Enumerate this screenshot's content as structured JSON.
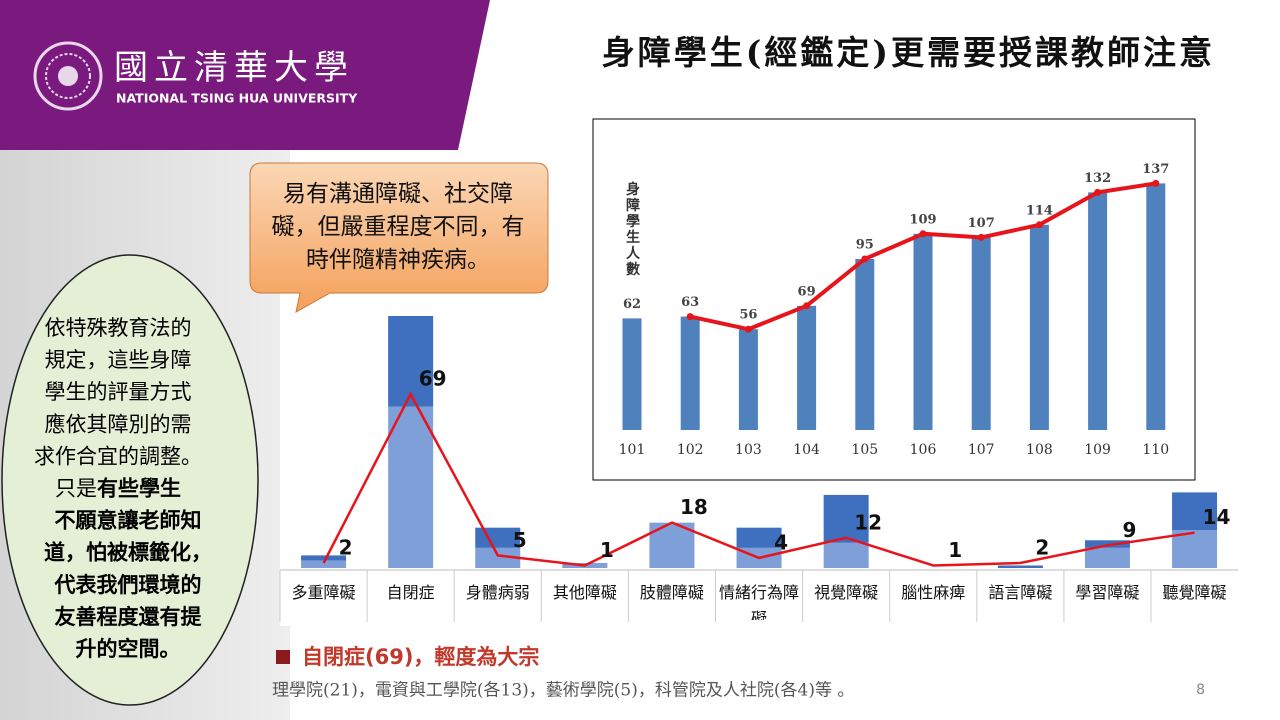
{
  "header": {
    "title": "身障學生(經鑑定)更需要授課教師注意",
    "logo_cn": "國立清華大學",
    "logo_en": "NATIONAL TSING HUA UNIVERSITY"
  },
  "callout": "易有溝通障礙、社交障礙，但嚴重程度不同，有時伴隨精神疾病。",
  "ellipse": {
    "lines": [
      "依特殊教育法的",
      "規定，這些身障",
      "學生的評量方式",
      "應依其障別的需",
      "求作合宜的調整。"
    ],
    "lead": "只是",
    "emphasis": [
      "有些學生",
      "不願意讓老師知",
      "道，怕被標籤化，",
      "代表我們環境的",
      "友善程度還有提",
      "升的空間。"
    ]
  },
  "bullet": "自閉症(69)，輕度為大宗",
  "footnote": "理學院(21)，電資與工學院(各13)，藝術學院(5)，科管院及人社院(各4)等 。",
  "page_number": 8,
  "chart_data": [
    {
      "type": "bar",
      "y_label": "身障學生人數",
      "categories": [
        "101",
        "102",
        "103",
        "104",
        "105",
        "106",
        "107",
        "108",
        "109",
        "110"
      ],
      "series": [
        {
          "color": "#4f81bd",
          "values": [
            62,
            63,
            56,
            69,
            95,
            109,
            107,
            114,
            132,
            137
          ]
        },
        {
          "type": "line",
          "color": "#e8141b",
          "values": [
            null,
            63,
            56,
            69,
            95,
            109,
            107,
            114,
            132,
            137
          ]
        }
      ],
      "ylim": [
        0,
        150
      ]
    },
    {
      "type": "stacked_bar",
      "categories": [
        "多重障礙",
        "自閉症",
        "身體病弱",
        "其他障礙",
        "肢體障礙",
        "情緒行為障礙",
        "視覺障礙",
        "腦性麻痺",
        "語言障礙",
        "學習障礙",
        "聽覺障礙"
      ],
      "series": [
        {
          "color": "#7f9fd8",
          "values": [
            3,
            64,
            8,
            2,
            18,
            8,
            10,
            0,
            0,
            8,
            15
          ]
        },
        {
          "color": "#3f6fbf",
          "values": [
            2,
            36,
            8,
            0,
            0,
            8,
            19,
            0,
            1,
            3,
            15
          ]
        },
        {
          "type": "line",
          "color": "#e8141b",
          "values": [
            2,
            69,
            5,
            1,
            18,
            4,
            12,
            1,
            2,
            9,
            14
          ]
        }
      ],
      "ylim": [
        0,
        100
      ]
    }
  ]
}
